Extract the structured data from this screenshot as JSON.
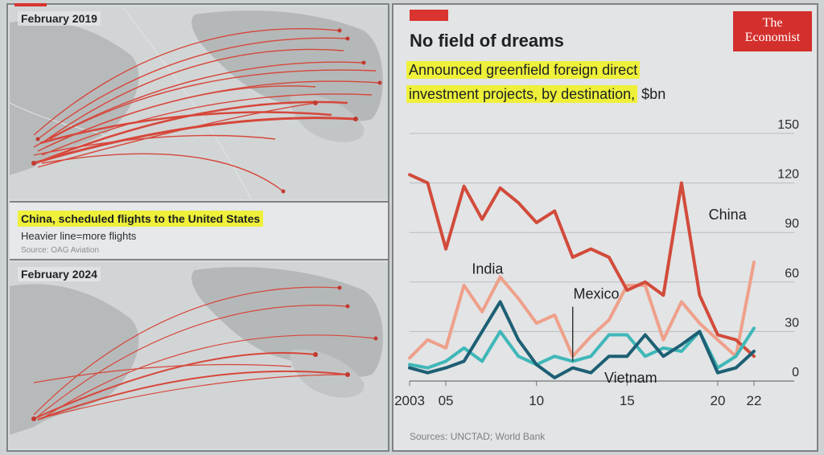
{
  "maps": {
    "map1_label": "February 2019",
    "map2_label": "February 2024",
    "caption_title": "China, scheduled flights to the United States",
    "caption_sub": "Heavier line=more flights",
    "caption_source": "Source: OAG Aviation"
  },
  "logo": {
    "line1": "The",
    "line2": "Economist"
  },
  "colors": {
    "china": "#d24b3b",
    "india": "#efa08a",
    "mexico": "#1d5f74",
    "vietnam": "#3fb7b8",
    "highlight": "#eef03a",
    "brand": "#d3302d"
  },
  "chart_data": {
    "type": "line",
    "title": "No field of dreams",
    "subtitle_part1": "Announced greenfield foreign direct",
    "subtitle_part2": "investment projects, by destination,",
    "subtitle_unit": "$bn",
    "x": [
      2003,
      2004,
      2005,
      2006,
      2007,
      2008,
      2009,
      2010,
      2011,
      2012,
      2013,
      2014,
      2015,
      2016,
      2017,
      2018,
      2019,
      2020,
      2021,
      2022
    ],
    "x_tick_labels": [
      "2003",
      "05",
      "10",
      "15",
      "20",
      "22"
    ],
    "x_tick_values": [
      2003,
      2005,
      2010,
      2015,
      2020,
      2022
    ],
    "y_ticks": [
      0,
      30,
      60,
      90,
      120,
      150
    ],
    "ylim": [
      0,
      150
    ],
    "series": [
      {
        "name": "China",
        "color": "#d24b3b",
        "values": [
          125,
          120,
          80,
          118,
          98,
          117,
          108,
          96,
          103,
          75,
          80,
          75,
          55,
          60,
          52,
          120,
          52,
          28,
          25,
          15
        ]
      },
      {
        "name": "India",
        "color": "#efa08a",
        "values": [
          14,
          25,
          20,
          58,
          42,
          63,
          50,
          35,
          40,
          15,
          27,
          37,
          58,
          58,
          25,
          48,
          35,
          25,
          15,
          72
        ]
      },
      {
        "name": "Mexico",
        "color": "#1d5f74",
        "values": [
          8,
          5,
          8,
          12,
          30,
          48,
          25,
          10,
          2,
          8,
          5,
          15,
          15,
          28,
          15,
          22,
          30,
          5,
          8,
          18
        ]
      },
      {
        "name": "Vietnam",
        "color": "#3fb7b8",
        "values": [
          10,
          8,
          12,
          20,
          12,
          30,
          15,
          10,
          15,
          12,
          15,
          28,
          28,
          15,
          20,
          18,
          30,
          8,
          15,
          32
        ]
      }
    ],
    "source": "Sources: UNCTAD; World Bank"
  }
}
